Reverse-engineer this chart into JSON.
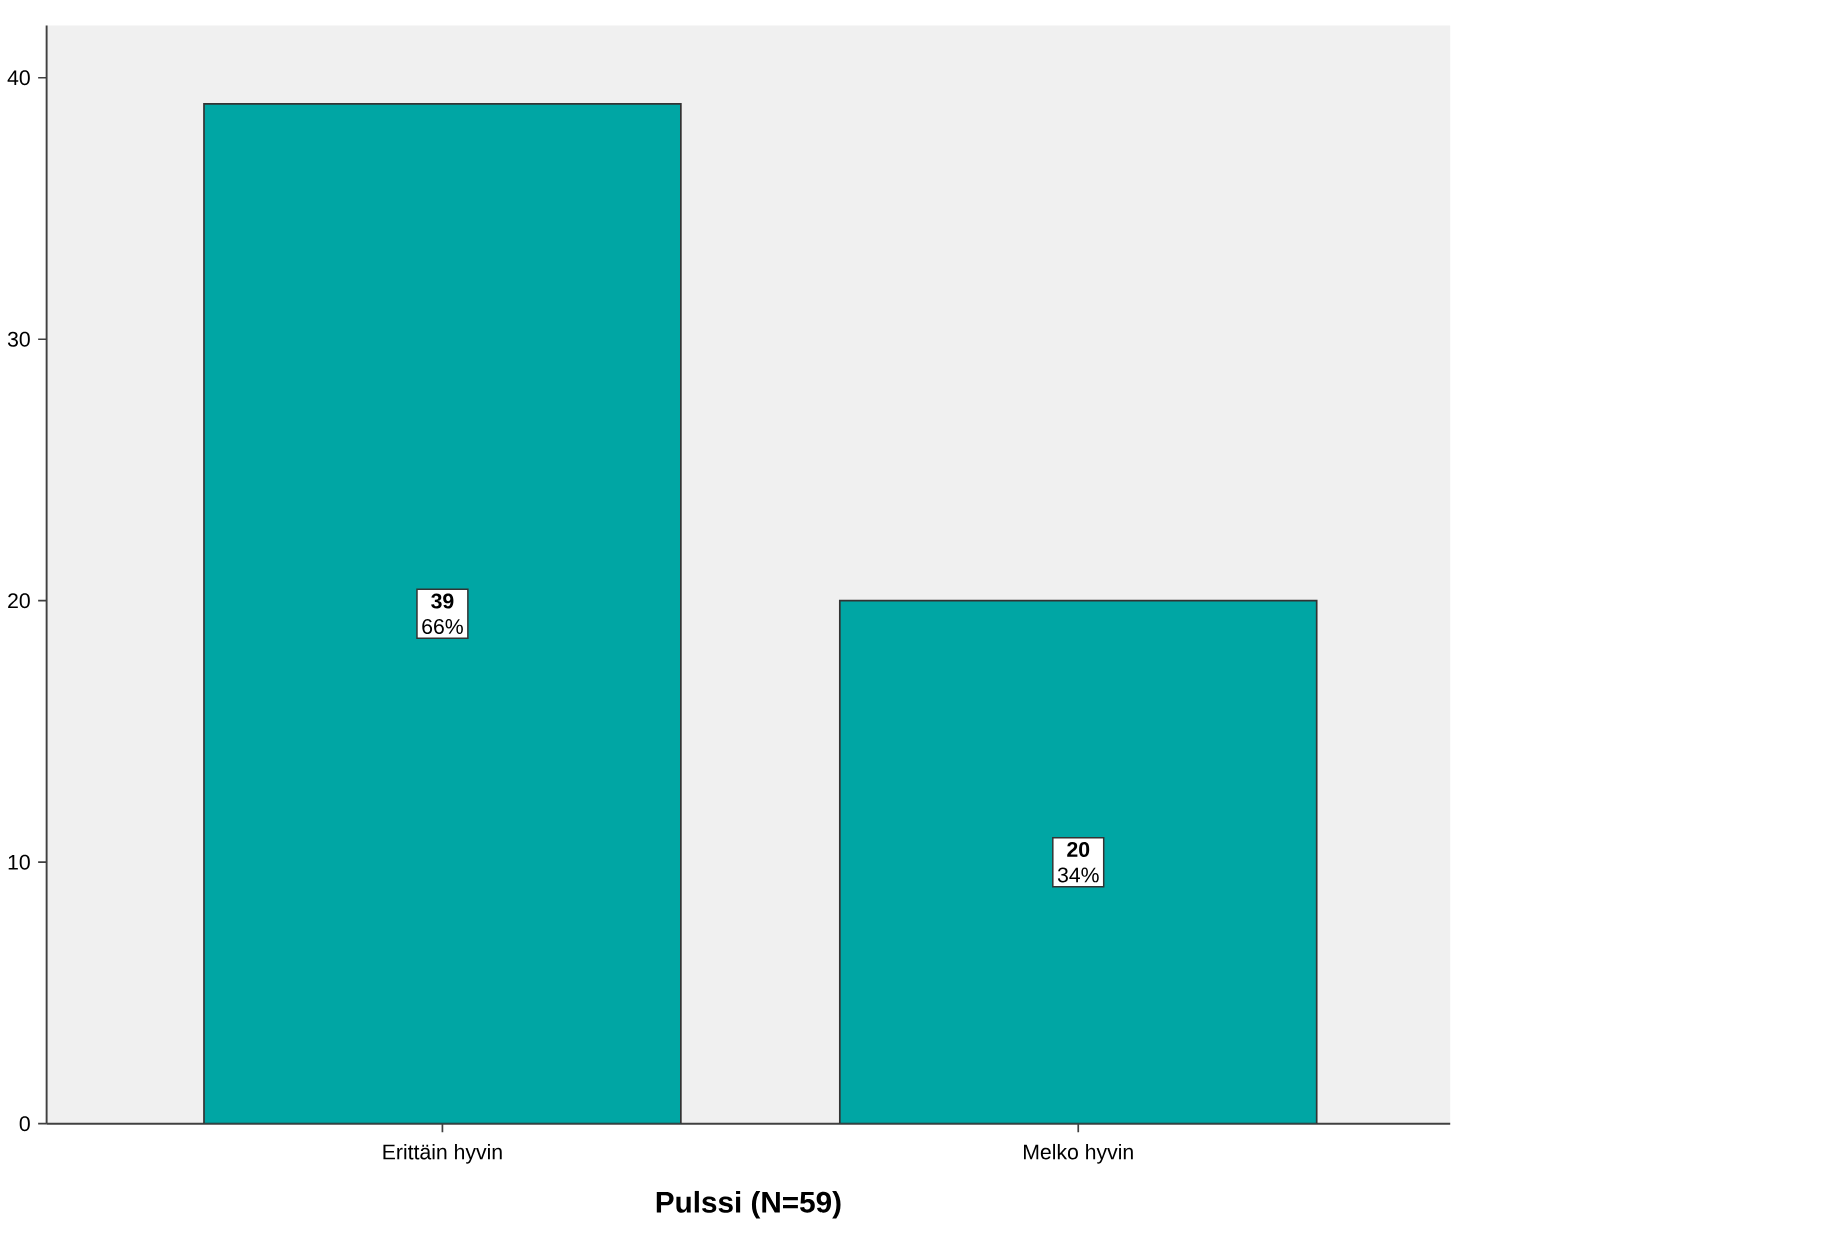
{
  "chart_data": {
    "type": "bar",
    "xlabel": "Pulssi (N=59)",
    "categories": [
      "Erittäin hyvin",
      "Melko hyvin"
    ],
    "values": [
      39,
      20
    ],
    "value_labels": [
      "**39** 66%",
      "**20** 34%"
    ],
    "color": "#00a6a4",
    "ylim": [
      0,
      42
    ],
    "yticks": [
      0,
      10,
      20,
      30,
      40
    ]
  }
}
